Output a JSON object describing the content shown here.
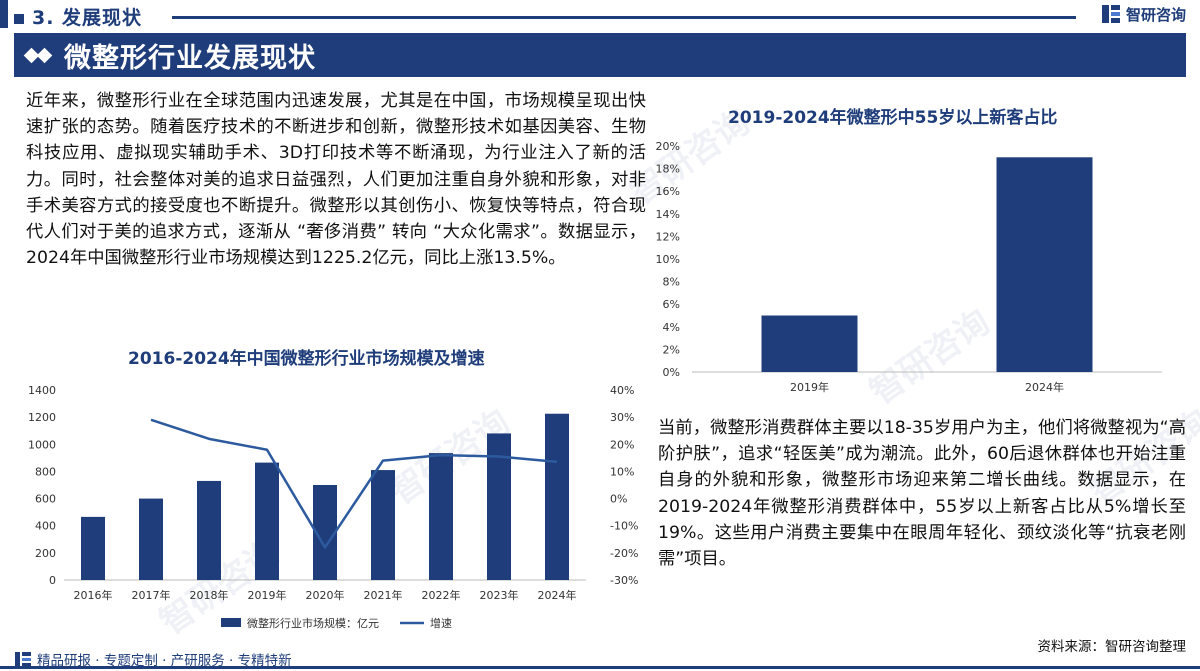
{
  "header": {
    "section_label": "3. 发展现状",
    "brand_name": "智研咨询"
  },
  "title": "微整形行业发展现状",
  "paragraphs": {
    "left": "近年来，微整形行业在全球范围内迅速发展，尤其是在中国，市场规模呈现出快速扩张的态势。随着医疗技术的不断进步和创新，微整形技术如基因美容、生物科技应用、虚拟现实辅助手术、3D打印技术等不断涌现，为行业注入了新的活力。同时，社会整体对美的追求日益强烈，人们更加注重自身外貌和形象，对非手术美容方式的接受度也不断提升。微整形以其创伤小、恢复快等特点，符合现代人们对于美的追求方式，逐渐从 “奢侈消费” 转向 “大众化需求”。数据显示，2024年中国微整形行业市场规模达到1225.2亿元，同比上涨13.5%。",
    "right": "当前，微整形消费群体主要以18-35岁用户为主，他们将微整视为“高阶护肤”，追求“轻医美”成为潮流。此外，60后退休群体也开始注重自身的外貌和形象，微整形市场迎来第二增长曲线。数据显示，在2019-2024年微整形消费群体中，55岁以上新客占比从5%增长至19%。这些用户消费主要集中在眼周年轻化、颈纹淡化等“抗衰老刚需”项目。"
  },
  "source": "资料来源：智研咨询整理",
  "footer": {
    "tagline": "精品研报 · 专题定制 · 产研服务 · 专精特新"
  },
  "watermark": "智研咨询",
  "colors": {
    "primary": "#1f3d7a",
    "bar": "#1f3d7a",
    "line": "#2d5a9e"
  },
  "chart_data": [
    {
      "type": "bar",
      "title": "2016-2024年中国微整形行业市场规模及增速",
      "categories": [
        "2016年",
        "2017年",
        "2018年",
        "2019年",
        "2020年",
        "2021年",
        "2022年",
        "2023年",
        "2024年"
      ],
      "series": [
        {
          "name": "微整形行业市场规模：亿元",
          "type": "bar",
          "axis": "left",
          "values": [
            465,
            600,
            730,
            865,
            700,
            810,
            935,
            1080,
            1225.2
          ]
        },
        {
          "name": "增速",
          "type": "line",
          "axis": "right",
          "values": [
            null,
            29,
            22,
            18,
            -18,
            14,
            16,
            15.5,
            13.5
          ]
        }
      ],
      "y_left": {
        "ylim": [
          0,
          1400
        ],
        "ticks": [
          "0",
          "200",
          "400",
          "600",
          "800",
          "1000",
          "1200",
          "1400"
        ]
      },
      "y_right": {
        "ylim": [
          -30,
          40
        ],
        "ticks": [
          "-30%",
          "-20%",
          "-10%",
          "0%",
          "10%",
          "20%",
          "30%",
          "40%"
        ]
      },
      "legend": "bottom",
      "grid": false
    },
    {
      "type": "bar",
      "title": "2019-2024年微整形中55岁以上新客占比",
      "categories": [
        "2019年",
        "2024年"
      ],
      "values": [
        5,
        19
      ],
      "ylim": [
        0,
        20
      ],
      "ticks": [
        "0%",
        "2%",
        "4%",
        "6%",
        "8%",
        "10%",
        "12%",
        "14%",
        "16%",
        "18%",
        "20%"
      ],
      "grid": false
    }
  ]
}
